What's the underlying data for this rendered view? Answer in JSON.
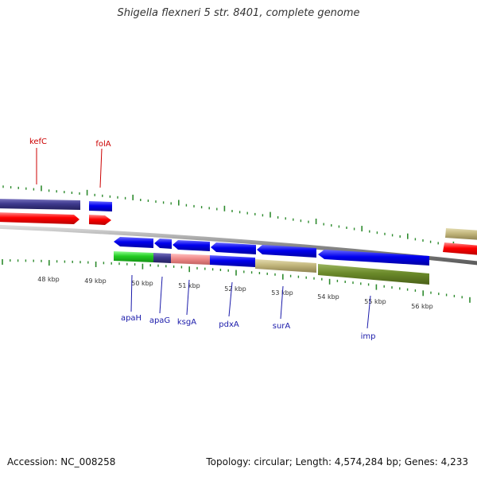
{
  "title": "Shigella flexneri 5 str. 8401, complete genome",
  "footer": {
    "accession": "Accession: NC_008258",
    "stats": "Topology: circular; Length: 4,574,284 bp; Genes: 4,233"
  },
  "colors": {
    "backbone": "#8a8a8a",
    "tick": "#2e8b2e",
    "upper_label": "#cc0000",
    "lower_label": "#1a1aaa",
    "tick_label": "#333333"
  },
  "ruler_labels": [
    "48 kbp",
    "49 kbp",
    "50 kbp",
    "51 kbp",
    "52 kbp",
    "53 kbp",
    "54 kbp",
    "55 kbp",
    "56 kbp"
  ],
  "upper_gene_labels": [
    "kefC",
    "folA"
  ],
  "lower_gene_labels": [
    "apaH",
    "apaG",
    "ksgA",
    "pdxA",
    "surA",
    "imp"
  ]
}
